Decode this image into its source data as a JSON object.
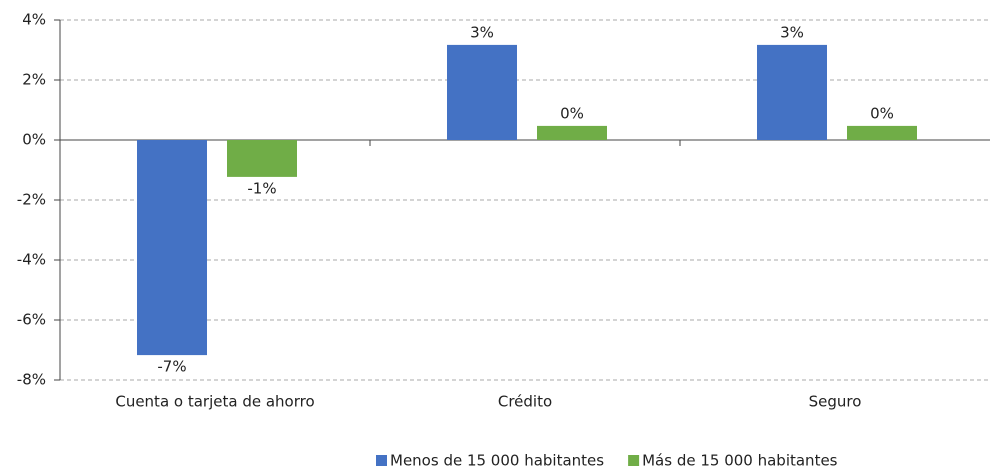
{
  "chart_data": {
    "type": "bar",
    "categories": [
      "Cuenta o tarjeta de ahorro",
      "Crédito",
      "Seguro"
    ],
    "series": [
      {
        "name": "Menos de 15 000 habitantes",
        "color": "#4472c4",
        "values": [
          -7.17,
          3.17,
          3.17
        ],
        "value_labels": [
          "-7%",
          "3%",
          "3%"
        ]
      },
      {
        "name": "Más de 15 000 habitantes",
        "color": "#70ad47",
        "values": [
          -1.23,
          0.47,
          0.47
        ],
        "value_labels": [
          "-1%",
          "0%",
          "0%"
        ]
      }
    ],
    "ylim": [
      -8,
      4
    ],
    "yticks": [
      {
        "value": -8,
        "label": "-8%"
      },
      {
        "value": -6,
        "label": "-6%"
      },
      {
        "value": -4,
        "label": "-4%"
      },
      {
        "value": -2,
        "label": "-2%"
      },
      {
        "value": 0,
        "label": "0%"
      },
      {
        "value": 2,
        "label": "2%"
      },
      {
        "value": 4,
        "label": "4%"
      }
    ],
    "grid": true,
    "legend": "bottom"
  }
}
